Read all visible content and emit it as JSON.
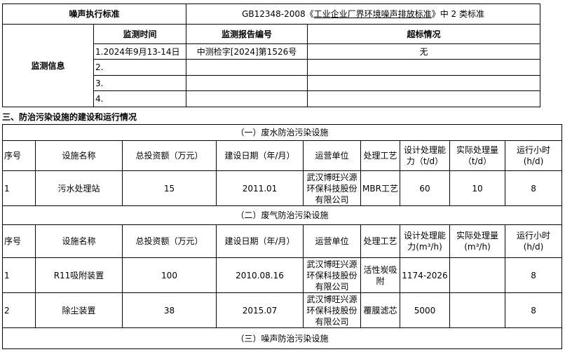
{
  "noise_standard": {
    "label": "噪声执行标准",
    "value_prefix": "GB12348-2008《",
    "value_underlined": "工业企业厂界环境噪声排放标准",
    "value_suffix": "》中 2 类标准"
  },
  "monitoring": {
    "label": "监测信息",
    "headers": [
      "监测时间",
      "监测报告编号",
      "超标情况"
    ],
    "rows": [
      [
        "1.2024年9月13-14日",
        "中测检字[2024]第1526号",
        "无"
      ],
      [
        "2.",
        "",
        ""
      ],
      [
        "3.",
        "",
        ""
      ],
      [
        "4.",
        "",
        ""
      ]
    ]
  },
  "section_heading": "三、防治污染设施的建设和运行情况",
  "wastewater": {
    "title": "（一）废水防治污染设施",
    "headers": [
      "序号",
      "设施名称",
      "总投资额（万元）",
      "建设日期（年/月）",
      "运营单位",
      "处理工艺",
      "设计处理能力（t/d）",
      "实际处理量（t/d）",
      "运行小时(h/d)"
    ],
    "rows": [
      [
        "1",
        "污水处理站",
        "15",
        "2011.01",
        "武汉博旺兴源环保科技股份有限公司",
        "MBR工艺",
        "60",
        "10",
        "8"
      ]
    ]
  },
  "waste_gas": {
    "title": "（二）废气防治污染设施",
    "headers": [
      "序号",
      "设施名称",
      "总投资额（万元）",
      "建设日期（年/月）",
      "运营单位",
      "处理工艺",
      "设计处理能力(m³/h)",
      "实际处理量(m³/h)",
      "运行小时(h/d)"
    ],
    "rows": [
      [
        "1",
        "R11吸附装置",
        "100",
        "2010.08.16",
        "武汉博旺兴源环保科技股份有限公司",
        "活性炭吸附",
        "1174-2026",
        "",
        "8"
      ],
      [
        "2",
        "除尘装置",
        "38",
        "2015.07",
        "武汉博旺兴源环保科技股份有限公司",
        "覆膜滤芯",
        "5000",
        "",
        "8"
      ]
    ]
  },
  "noise": {
    "title": "（三）噪声防治污染设施"
  }
}
